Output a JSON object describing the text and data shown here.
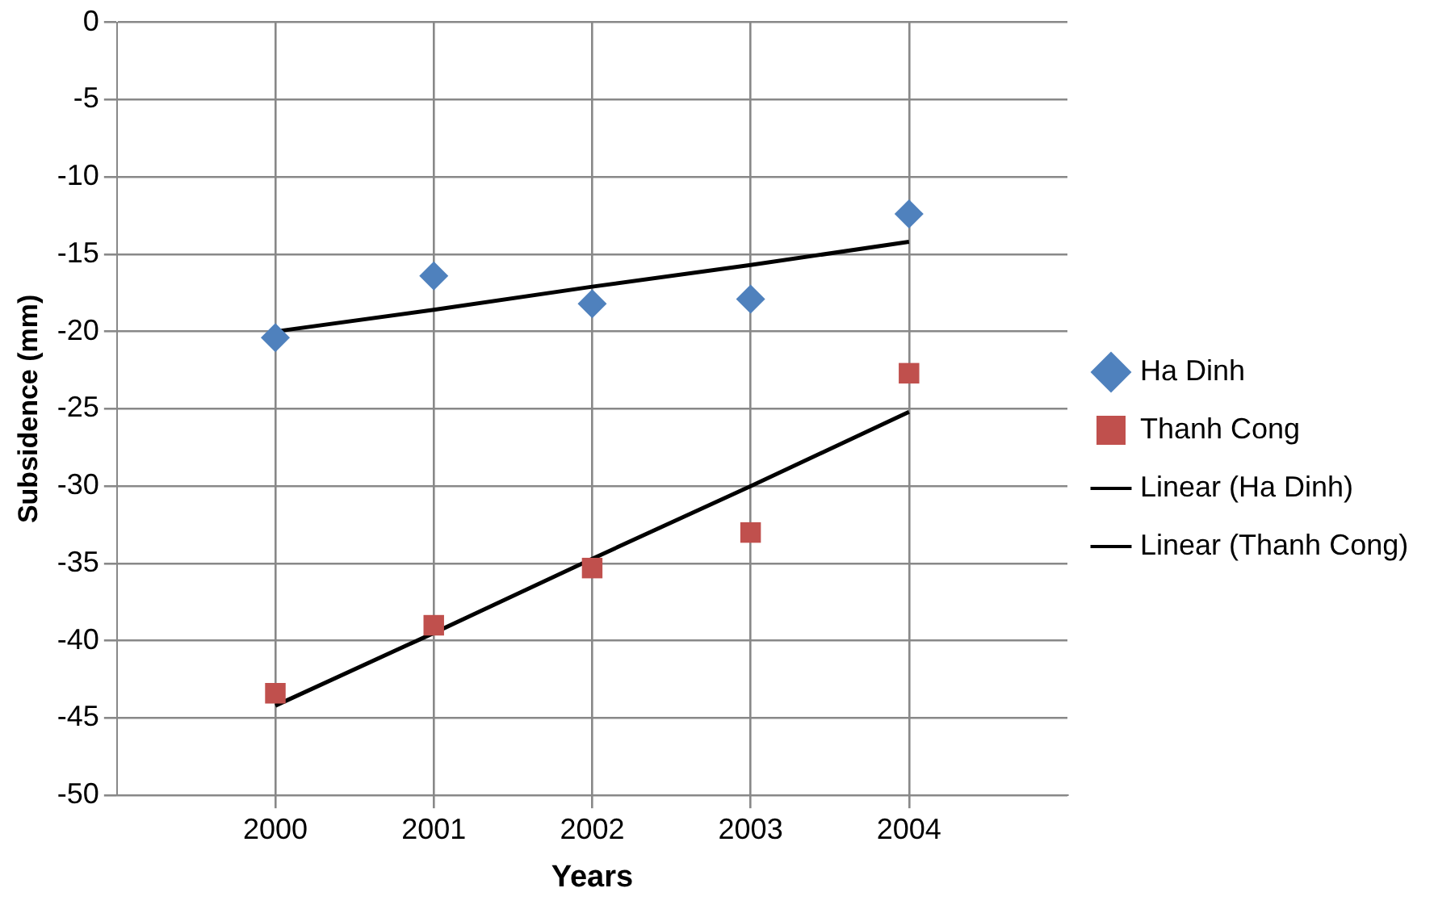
{
  "chart_data": {
    "type": "scatter",
    "xlabel": "Years",
    "ylabel": "Subsidence (mm)",
    "x": [
      2000,
      2001,
      2002,
      2003,
      2004
    ],
    "xlim": [
      1999,
      2005
    ],
    "xticks": [
      2000,
      2001,
      2002,
      2003,
      2004
    ],
    "ylim": [
      -50,
      0
    ],
    "yticks": [
      -50,
      -45,
      -40,
      -35,
      -30,
      -25,
      -20,
      -15,
      -10,
      -5,
      0
    ],
    "grid": true,
    "legend": "right",
    "series": [
      {
        "name": "Ha Dinh",
        "color": "#4f81bd",
        "marker": "diamond",
        "values": [
          -20.4,
          -16.4,
          -18.2,
          -17.9,
          -12.4
        ]
      },
      {
        "name": "Thanh Cong",
        "color": "#c0504d",
        "marker": "square",
        "values": [
          -43.4,
          -39.0,
          -35.3,
          -33.0,
          -22.7
        ]
      },
      {
        "name": "Linear (Ha Dinh)",
        "type": "line",
        "color": "#000000",
        "marker": "none",
        "values": [
          -20.0,
          -18.6,
          -17.1,
          -15.7,
          -14.2
        ]
      },
      {
        "name": "Linear (Thanh Cong)",
        "type": "line",
        "color": "#000000",
        "marker": "none",
        "values": [
          -44.2,
          -39.5,
          -34.7,
          -30.0,
          -25.2
        ]
      }
    ]
  }
}
